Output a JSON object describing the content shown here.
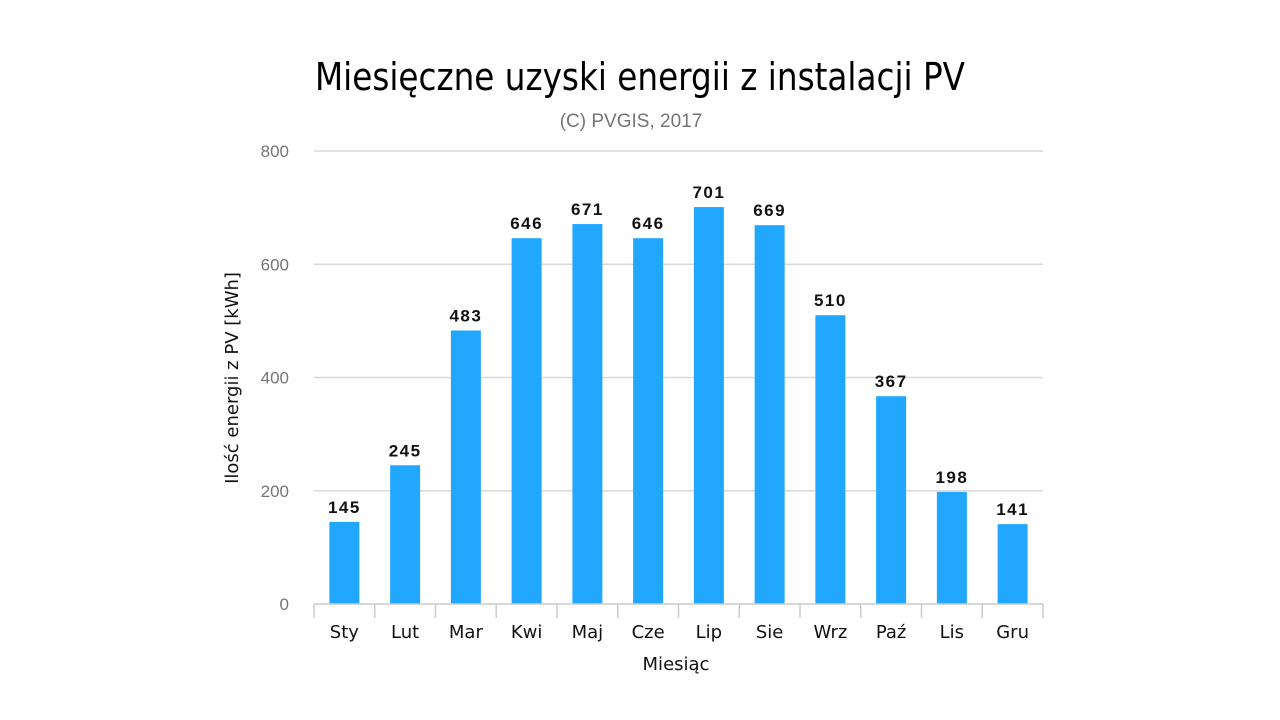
{
  "chart_data": {
    "type": "bar",
    "title": "Miesięczne uzyski energii z instalacji PV",
    "subtitle": "(C) PVGIS, 2017",
    "xlabel": "Miesiąc",
    "ylabel": "Ilość energii z PV [kWh]",
    "categories": [
      "Sty",
      "Lut",
      "Mar",
      "Kwi",
      "Maj",
      "Cze",
      "Lip",
      "Sie",
      "Wrz",
      "Paź",
      "Lis",
      "Gru"
    ],
    "values": [
      145,
      245,
      483,
      646,
      671,
      646,
      701,
      669,
      510,
      367,
      198,
      141
    ],
    "ylim": [
      0,
      800
    ],
    "yticks": [
      0,
      200,
      400,
      600,
      800
    ],
    "grid": true,
    "legend": "none",
    "colors": {
      "bar": "#22a7ff",
      "grid": "#d9d9d9",
      "axis": "#cccccc"
    }
  }
}
